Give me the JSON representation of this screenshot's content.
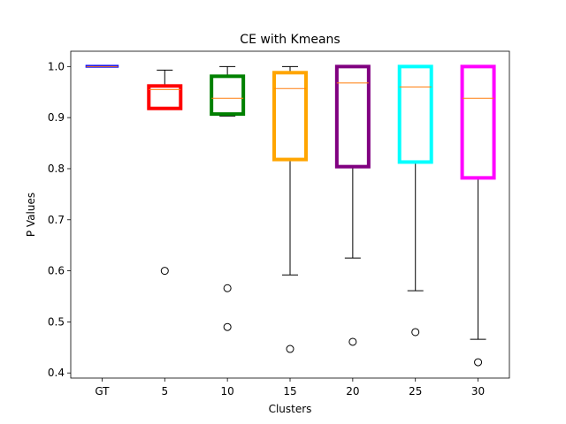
{
  "chart_data": {
    "type": "box",
    "title": "CE with Kmeans",
    "xlabel": "Clusters",
    "ylabel": "P Values",
    "ylim": [
      0.39,
      1.03
    ],
    "yticks": [
      0.4,
      0.5,
      0.6,
      0.7,
      0.8,
      0.9,
      1.0
    ],
    "ytick_labels": [
      "0.4",
      "0.5",
      "0.6",
      "0.7",
      "0.8",
      "0.9",
      "1.0"
    ],
    "grid": false,
    "median_color": "#ff7f0e",
    "whisker_color": "#000000",
    "categories": [
      "GT",
      "5",
      "10",
      "15",
      "20",
      "25",
      "30"
    ],
    "boxes": [
      {
        "label": "GT",
        "color": "#0000ff",
        "whisker_low": 0.999,
        "q1": 0.999,
        "median": 1.0,
        "q3": 1.002,
        "whisker_high": 1.002,
        "outliers": []
      },
      {
        "label": "5",
        "color": "#ff0000",
        "whisker_low": 0.918,
        "q1": 0.918,
        "median": 0.955,
        "q3": 0.962,
        "whisker_high": 0.993,
        "outliers": [
          0.6
        ]
      },
      {
        "label": "10",
        "color": "#008000",
        "whisker_low": 0.903,
        "q1": 0.907,
        "median": 0.938,
        "q3": 0.981,
        "whisker_high": 1.0,
        "outliers": [
          0.566,
          0.49
        ]
      },
      {
        "label": "15",
        "color": "#ffa500",
        "whisker_low": 0.592,
        "q1": 0.818,
        "median": 0.957,
        "q3": 0.988,
        "whisker_high": 1.0,
        "outliers": [
          0.447
        ]
      },
      {
        "label": "20",
        "color": "#800080",
        "whisker_low": 0.625,
        "q1": 0.804,
        "median": 0.968,
        "q3": 1.0,
        "whisker_high": 1.0,
        "outliers": [
          0.461
        ]
      },
      {
        "label": "25",
        "color": "#00ffff",
        "whisker_low": 0.561,
        "q1": 0.813,
        "median": 0.96,
        "q3": 1.0,
        "whisker_high": 1.0,
        "outliers": [
          0.48
        ]
      },
      {
        "label": "30",
        "color": "#ff00ff",
        "whisker_low": 0.466,
        "q1": 0.782,
        "median": 0.938,
        "q3": 1.0,
        "whisker_high": 1.0,
        "outliers": [
          0.421
        ]
      }
    ]
  }
}
